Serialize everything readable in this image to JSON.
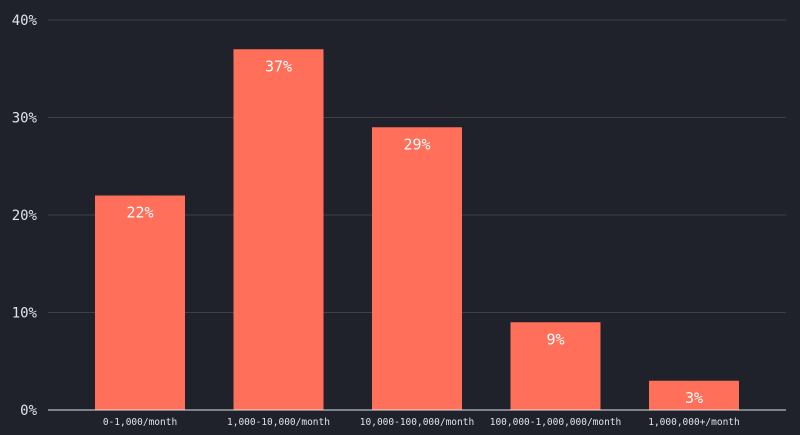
{
  "chart_data": {
    "type": "bar",
    "categories": [
      "0-1,000/month",
      "1,000-10,000/month",
      "10,000-100,000/month",
      "100,000-1,000,000/month",
      "1,000,000+/month"
    ],
    "values": [
      22,
      37,
      29,
      9,
      3
    ],
    "data_labels": [
      "22%",
      "37%",
      "29%",
      "9%",
      "3%"
    ],
    "ylim": [
      0,
      40
    ],
    "yticks": [
      0,
      10,
      20,
      30,
      40
    ],
    "ytick_labels": [
      "0%",
      "10%",
      "20%",
      "30%",
      "40%"
    ],
    "grid": true,
    "bar_color": "#ff6f59",
    "background_color": "#1f212b",
    "grid_color": "#3e414b"
  }
}
